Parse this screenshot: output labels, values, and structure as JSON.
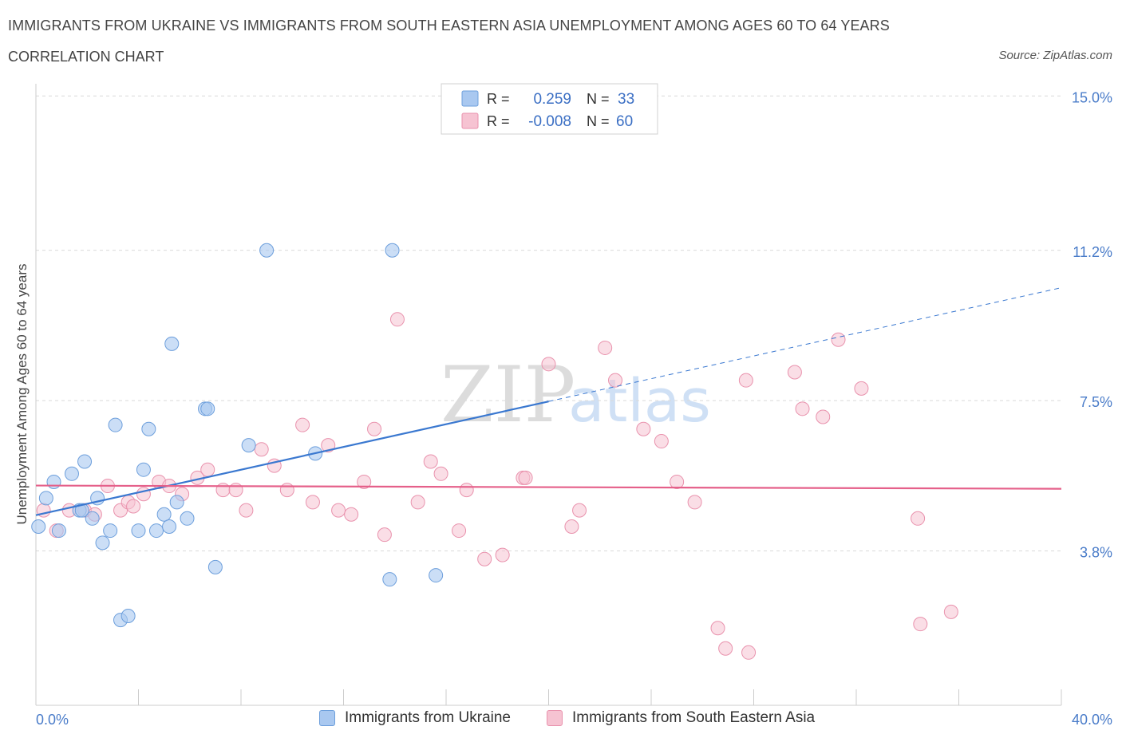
{
  "title": "IMMIGRANTS FROM UKRAINE VS IMMIGRANTS FROM SOUTH EASTERN ASIA UNEMPLOYMENT AMONG AGES 60 TO 64 YEARS",
  "subtitle": "CORRELATION CHART",
  "source": "Source: ZipAtlas.com",
  "watermark": {
    "zip": "ZIP",
    "atlas": "atlas"
  },
  "legend_box": {
    "rows": [
      {
        "r_label": "R =",
        "r_value": "0.259",
        "n_label": "N =",
        "n_value": "33"
      },
      {
        "r_label": "R =",
        "r_value": "-0.008",
        "n_label": "N =",
        "n_value": "60"
      }
    ]
  },
  "bottom_legend": {
    "ukraine": "Immigrants from Ukraine",
    "sea": "Immigrants from South Eastern Asia"
  },
  "colors": {
    "ukraine_fill": "#a9c8f0",
    "ukraine_stroke": "#6d9fdc",
    "ukraine_line": "#3a78d0",
    "sea_fill": "#f6c3d2",
    "sea_stroke": "#e992ad",
    "sea_line": "#e5608a",
    "tick_label": "#4a7cc9"
  },
  "chart_data": {
    "type": "scatter",
    "title": "IMMIGRANTS FROM UKRAINE VS IMMIGRANTS FROM SOUTH EASTERN ASIA UNEMPLOYMENT AMONG AGES 60 TO 64 YEARS",
    "xlabel": "",
    "ylabel": "Unemployment Among Ages 60 to 64 years",
    "xlim": [
      0,
      40
    ],
    "ylim": [
      0,
      15.3
    ],
    "x_tick_labels": [
      "0.0%",
      "40.0%"
    ],
    "y_ticks": [
      3.8,
      7.5,
      11.2,
      15.0
    ],
    "y_tick_labels": [
      "3.8%",
      "7.5%",
      "11.2%",
      "15.0%"
    ],
    "grid": true,
    "series": [
      {
        "name": "Immigrants from Ukraine",
        "r": 0.259,
        "n": 33,
        "trend": {
          "x0": 0,
          "y0": 4.68,
          "x1": 20,
          "y1": 7.48,
          "dashed_to_x": 40,
          "dashed_to_y": 10.28
        },
        "points": [
          [
            0.1,
            4.4
          ],
          [
            0.4,
            5.1
          ],
          [
            0.7,
            5.5
          ],
          [
            0.9,
            4.3
          ],
          [
            1.4,
            5.7
          ],
          [
            1.9,
            6.0
          ],
          [
            2.2,
            4.6
          ],
          [
            2.4,
            5.1
          ],
          [
            1.7,
            4.8
          ],
          [
            2.6,
            4.0
          ],
          [
            2.9,
            4.3
          ],
          [
            3.1,
            6.9
          ],
          [
            3.3,
            2.1
          ],
          [
            3.6,
            2.2
          ],
          [
            4.0,
            4.3
          ],
          [
            4.2,
            5.8
          ],
          [
            4.4,
            6.8
          ],
          [
            4.7,
            4.3
          ],
          [
            5.0,
            4.7
          ],
          [
            5.2,
            4.4
          ],
          [
            5.5,
            5.0
          ],
          [
            5.3,
            8.9
          ],
          [
            5.9,
            4.6
          ],
          [
            6.6,
            7.3
          ],
          [
            6.7,
            7.3
          ],
          [
            7.0,
            3.4
          ],
          [
            8.3,
            6.4
          ],
          [
            9.0,
            11.2
          ],
          [
            10.9,
            6.2
          ],
          [
            13.9,
            11.2
          ],
          [
            13.8,
            3.1
          ],
          [
            15.6,
            3.2
          ],
          [
            1.8,
            4.8
          ]
        ]
      },
      {
        "name": "Immigrants from South Eastern Asia",
        "r": -0.008,
        "n": 60,
        "trend": {
          "x0": 0,
          "y0": 5.41,
          "x1": 40,
          "y1": 5.33
        },
        "points": [
          [
            0.3,
            4.8
          ],
          [
            0.8,
            4.3
          ],
          [
            1.3,
            4.8
          ],
          [
            1.9,
            4.8
          ],
          [
            2.3,
            4.7
          ],
          [
            2.8,
            5.4
          ],
          [
            3.3,
            4.8
          ],
          [
            3.6,
            5.0
          ],
          [
            3.8,
            4.9
          ],
          [
            4.2,
            5.2
          ],
          [
            4.8,
            5.5
          ],
          [
            5.2,
            5.4
          ],
          [
            5.7,
            5.2
          ],
          [
            6.3,
            5.6
          ],
          [
            6.7,
            5.8
          ],
          [
            7.3,
            5.3
          ],
          [
            7.8,
            5.3
          ],
          [
            8.2,
            4.8
          ],
          [
            8.8,
            6.3
          ],
          [
            9.3,
            5.9
          ],
          [
            9.8,
            5.3
          ],
          [
            10.4,
            6.9
          ],
          [
            10.8,
            5.0
          ],
          [
            11.4,
            6.4
          ],
          [
            11.8,
            4.8
          ],
          [
            12.3,
            4.7
          ],
          [
            12.8,
            5.5
          ],
          [
            13.2,
            6.8
          ],
          [
            13.6,
            4.2
          ],
          [
            14.1,
            9.5
          ],
          [
            14.9,
            5.0
          ],
          [
            15.4,
            6.0
          ],
          [
            15.8,
            5.7
          ],
          [
            16.5,
            4.3
          ],
          [
            16.8,
            5.3
          ],
          [
            17.5,
            3.6
          ],
          [
            18.2,
            3.7
          ],
          [
            19.0,
            5.6
          ],
          [
            19.1,
            5.6
          ],
          [
            20.0,
            8.4
          ],
          [
            20.9,
            4.4
          ],
          [
            21.2,
            4.8
          ],
          [
            22.2,
            8.8
          ],
          [
            22.6,
            8.0
          ],
          [
            23.7,
            6.8
          ],
          [
            24.4,
            6.5
          ],
          [
            25.0,
            5.5
          ],
          [
            25.7,
            5.0
          ],
          [
            26.6,
            1.9
          ],
          [
            26.9,
            1.4
          ],
          [
            27.8,
            1.3
          ],
          [
            27.7,
            8.0
          ],
          [
            29.6,
            8.2
          ],
          [
            29.9,
            7.3
          ],
          [
            30.7,
            7.1
          ],
          [
            31.3,
            9.0
          ],
          [
            32.2,
            7.8
          ],
          [
            34.4,
            4.6
          ],
          [
            34.5,
            2.0
          ],
          [
            35.7,
            2.3
          ]
        ]
      }
    ]
  }
}
